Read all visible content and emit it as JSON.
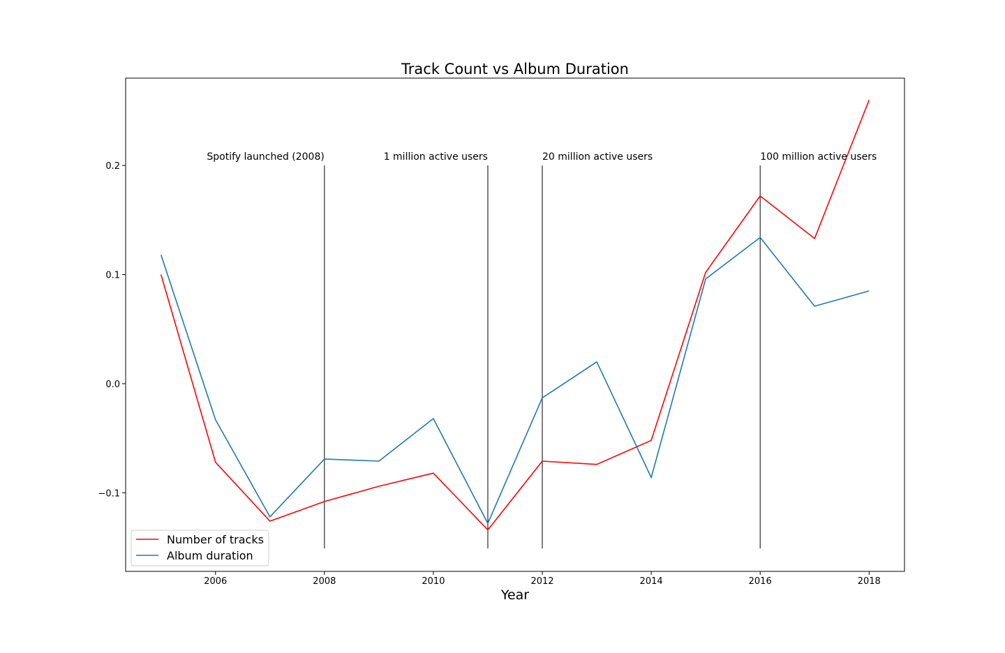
{
  "chart_data": {
    "type": "line",
    "title": "Track Count vs Album Duration",
    "xlabel": "Year",
    "ylabel": "",
    "xlim": [
      2004.35,
      2018.65
    ],
    "ylim": [
      -0.172,
      0.28
    ],
    "x_ticks": [
      2006,
      2008,
      2010,
      2012,
      2014,
      2016,
      2018
    ],
    "x_tick_labels": [
      "2006",
      "2008",
      "2010",
      "2012",
      "2014",
      "2016",
      "2018"
    ],
    "y_ticks": [
      -0.1,
      0.0,
      0.1,
      0.2
    ],
    "y_tick_labels": [
      "−0.1",
      "0.0",
      "0.1",
      "0.2"
    ],
    "grid": false,
    "legend_position": "lower-left",
    "x": [
      2005,
      2006,
      2007,
      2008,
      2009,
      2010,
      2011,
      2012,
      2013,
      2014,
      2015,
      2016,
      2017,
      2018
    ],
    "series": [
      {
        "name": "Number of tracks",
        "color": "#ff0000",
        "values": [
          0.1,
          -0.072,
          -0.126,
          -0.108,
          -0.094,
          -0.082,
          -0.134,
          -0.071,
          -0.074,
          -0.052,
          0.102,
          0.172,
          0.133,
          0.26
        ]
      },
      {
        "name": "Album duration",
        "color": "#1f77b4",
        "values": [
          0.118,
          -0.033,
          -0.122,
          -0.069,
          -0.071,
          -0.032,
          -0.128,
          -0.013,
          0.02,
          -0.086,
          0.096,
          0.134,
          0.071,
          0.085
        ]
      }
    ],
    "annotations": [
      {
        "x": 2008,
        "label": "Spotify launched (2008)",
        "align": "right"
      },
      {
        "x": 2011,
        "label": "1 million active users",
        "align": "right"
      },
      {
        "x": 2012,
        "label": "20 million active users",
        "align": "left"
      },
      {
        "x": 2016,
        "label": "100 million active users",
        "align": "left"
      }
    ],
    "annotation_line_range": [
      -0.151,
      0.2
    ]
  }
}
